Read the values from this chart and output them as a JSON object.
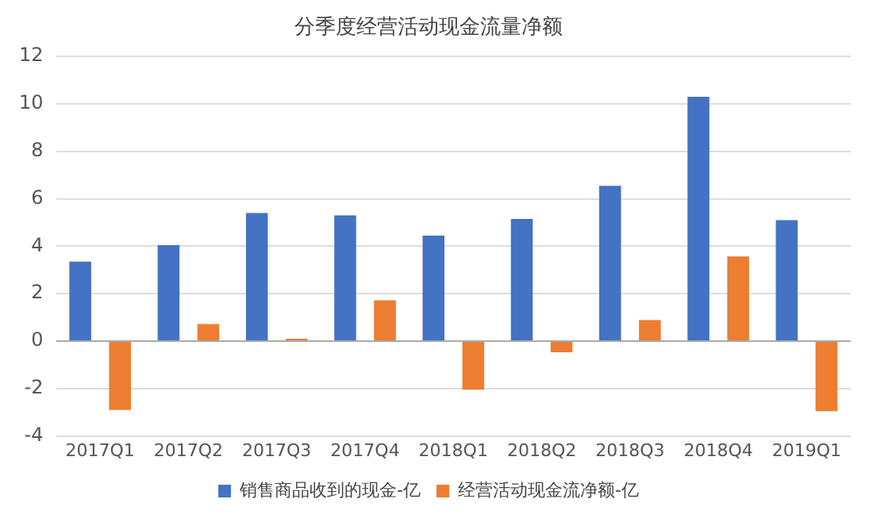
{
  "chart_data": {
    "type": "bar",
    "title": "分季度经营活动现金流量净额",
    "categories": [
      "2017Q1",
      "2017Q2",
      "2017Q3",
      "2017Q4",
      "2018Q1",
      "2018Q2",
      "2018Q3",
      "2018Q4",
      "2019Q1"
    ],
    "series": [
      {
        "name": "销售商品收到的现金-亿",
        "color": "#4472c4",
        "values": [
          3.35,
          4.05,
          5.4,
          5.3,
          4.45,
          5.15,
          6.55,
          10.3,
          5.1
        ]
      },
      {
        "name": "经营活动现金流净额-亿",
        "color": "#ed7d31",
        "values": [
          -2.9,
          0.72,
          0.1,
          1.72,
          -2.05,
          -0.47,
          0.89,
          3.57,
          -2.95
        ]
      }
    ],
    "ylim": [
      -4,
      12
    ],
    "yticks": [
      -4,
      -2,
      0,
      2,
      4,
      6,
      8,
      10,
      12
    ],
    "grid": "y",
    "legend": "bottom"
  }
}
